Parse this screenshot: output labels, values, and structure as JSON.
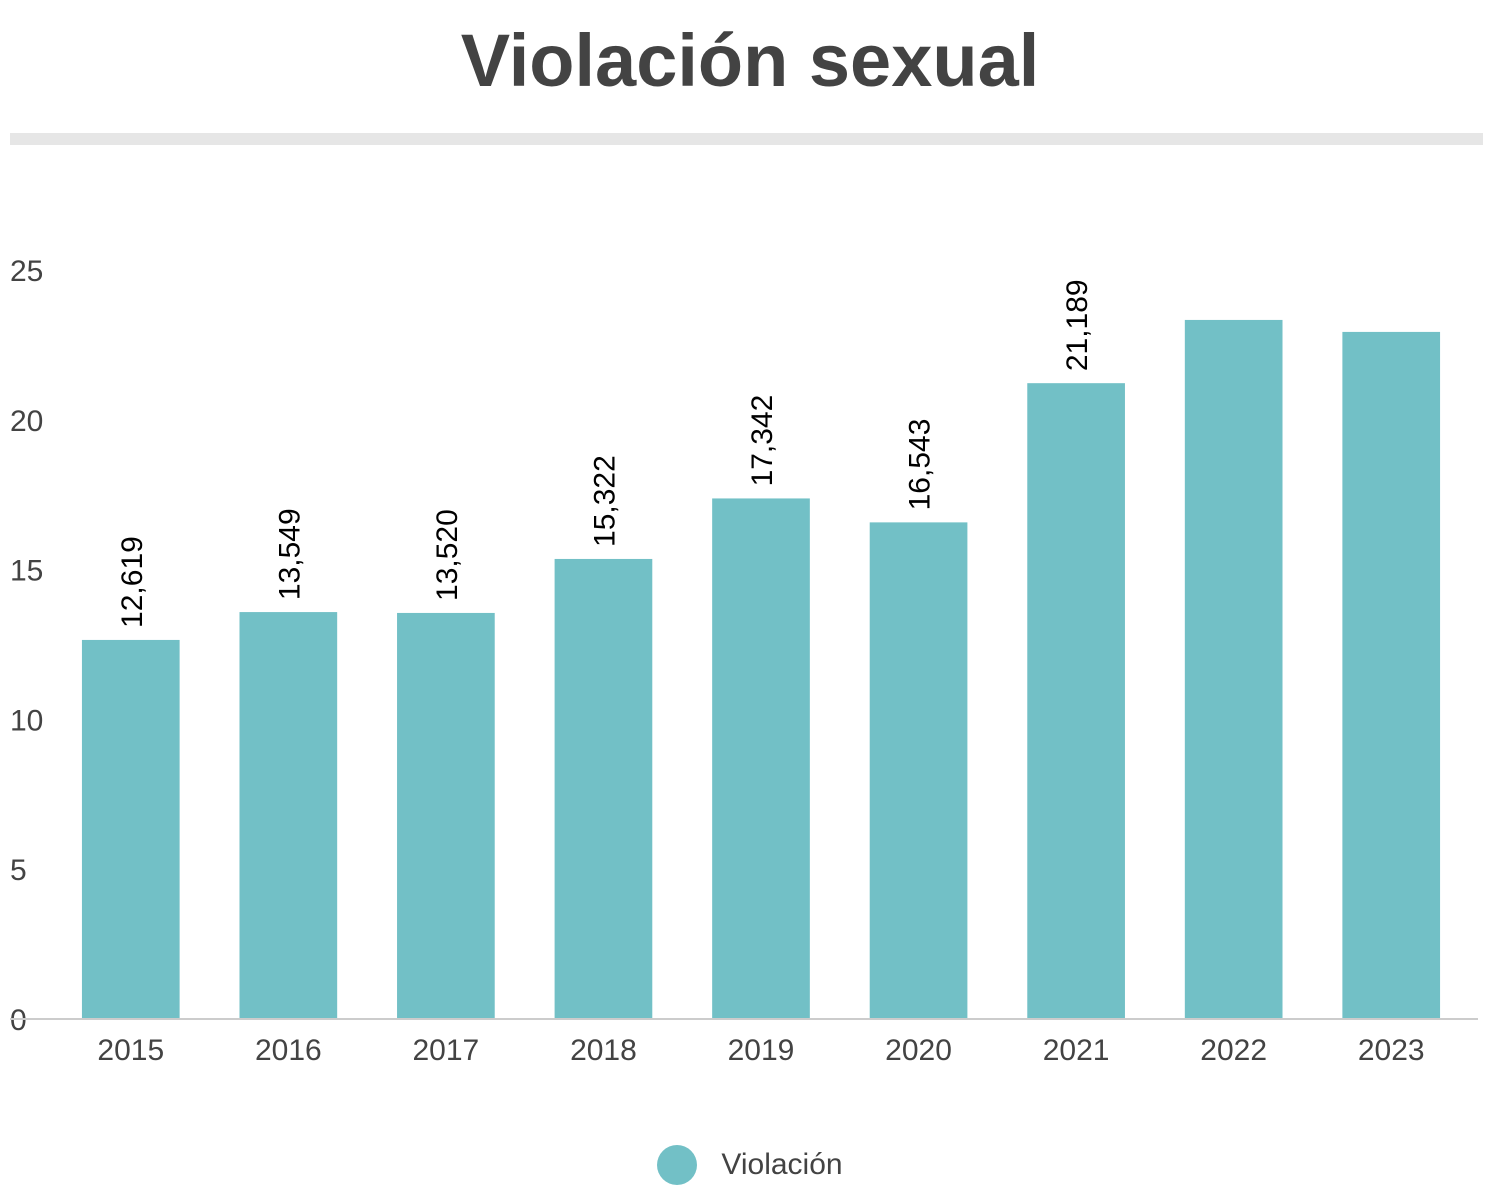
{
  "chart_data": {
    "type": "bar",
    "title": "Violación sexual",
    "categories": [
      "2015",
      "2016",
      "2017",
      "2018",
      "2019",
      "2020",
      "2021",
      "2022",
      "2023"
    ],
    "series": [
      {
        "name": "Violación",
        "values": [
          12.619,
          13.549,
          13.52,
          15.322,
          17.342,
          16.543,
          21.189,
          23.3,
          22.9
        ],
        "labels": [
          "12,619",
          "13,549",
          "13,520",
          "15,322",
          "17,342",
          "16,543",
          "21,189",
          "",
          ""
        ],
        "color": "#72c0c6"
      }
    ],
    "yticks": [
      0,
      5,
      10,
      15,
      20,
      25
    ],
    "ylim": [
      0,
      25
    ],
    "grid": false,
    "legend": "bottom-center",
    "colors": {
      "title": "#434343",
      "axis_text": "#434343",
      "data_label": "#000000"
    }
  }
}
